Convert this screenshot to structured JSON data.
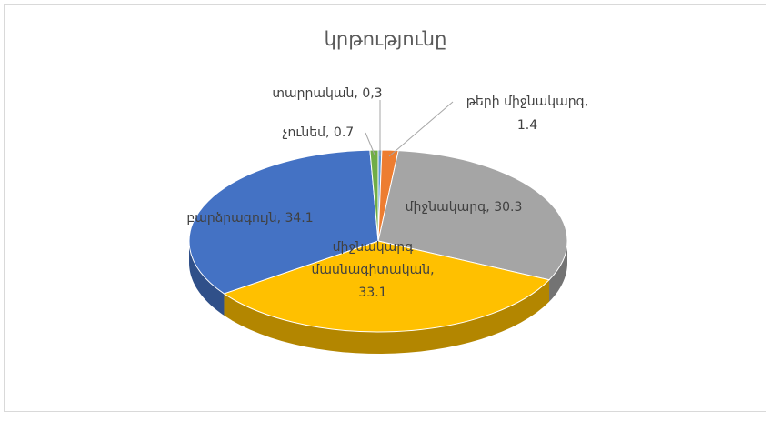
{
  "chart_data": {
    "type": "pie3d",
    "title": "կրթությունը",
    "values": [
      0.3,
      1.4,
      30.3,
      33.1,
      34.1,
      0.7
    ],
    "value_labels": [
      "տարրական, 0,3",
      "թերի միջնակարգ, 1.4",
      "միջնակարգ, 30.3",
      "միջնակարգ մասնագիտական, 33.1",
      "բարձրագույն, 34.1",
      "չունեմ, 0.7"
    ],
    "colors": [
      "#5b9bd5",
      "#ed7d31",
      "#a5a5a5",
      "#ffc000",
      "#4472c4",
      "#70ad47"
    ]
  }
}
